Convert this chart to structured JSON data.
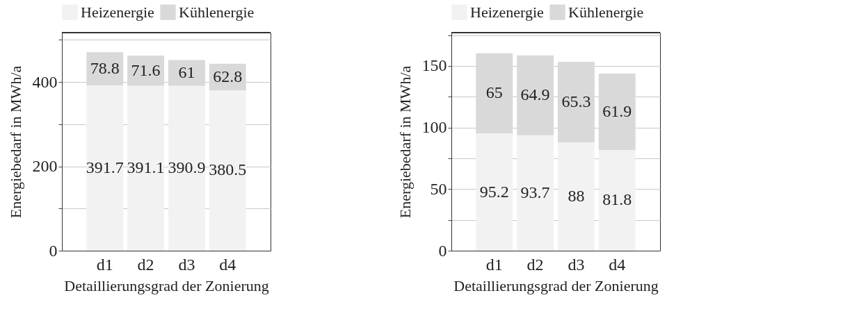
{
  "chart_data": [
    {
      "type": "bar",
      "stacked": true,
      "categories": [
        "d1",
        "d2",
        "d3",
        "d4"
      ],
      "xlabel": "Detaillierungsgrad der Zonierung",
      "ylabel": "Energiebedarf in MWh/a",
      "ylim": [
        0,
        517
      ],
      "yticks": [
        0,
        {
          "value": 100,
          "label": null
        },
        200,
        {
          "value": 300,
          "label": null
        },
        400,
        {
          "value": 500,
          "label": null
        }
      ],
      "grid": "y",
      "legend": "top",
      "data_labels": true,
      "series": [
        {
          "name": "Heizenergie",
          "color": "#f2f2f2",
          "values": [
            391.7,
            391.1,
            390.9,
            380.5
          ]
        },
        {
          "name": "Kühlenergie",
          "color": "#d9d9d9",
          "values": [
            78.8,
            71.6,
            61,
            62.8
          ]
        }
      ]
    },
    {
      "type": "bar",
      "stacked": true,
      "categories": [
        "d1",
        "d2",
        "d3",
        "d4"
      ],
      "xlabel": "Detaillierungsgrad der Zonierung",
      "ylabel": "Energiebedarf in MWh/a",
      "ylim": [
        0,
        177
      ],
      "yticks": [
        0,
        {
          "value": 25,
          "label": null
        },
        50,
        {
          "value": 75,
          "label": null
        },
        100,
        {
          "value": 125,
          "label": null
        },
        150,
        {
          "value": 175,
          "label": null
        }
      ],
      "grid": "y",
      "legend": "top",
      "data_labels": true,
      "series": [
        {
          "name": "Heizenergie",
          "color": "#f2f2f2",
          "values": [
            95.2,
            93.7,
            88,
            81.8
          ]
        },
        {
          "name": "Kühlenergie",
          "color": "#d9d9d9",
          "values": [
            65,
            64.9,
            65.3,
            61.9
          ]
        }
      ]
    }
  ]
}
